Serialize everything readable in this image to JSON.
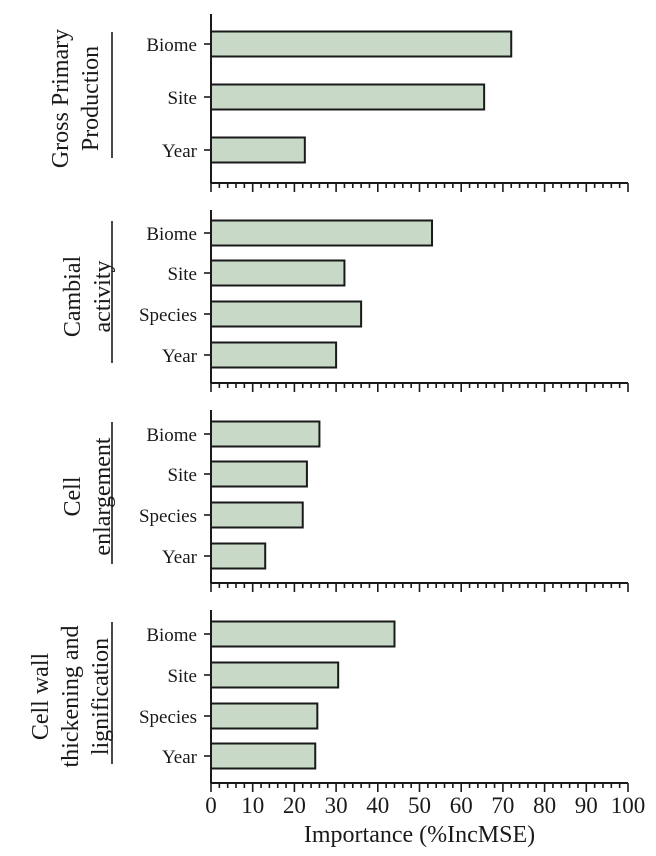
{
  "chart_data": [
    {
      "type": "bar",
      "orientation": "horizontal",
      "title": "Gross Primary Production",
      "title_lines": [
        "Gross Primary",
        "Production"
      ],
      "categories": [
        "Biome",
        "Site",
        "Year"
      ],
      "values": [
        72,
        65.5,
        22.5
      ],
      "xlim": [
        0,
        100
      ]
    },
    {
      "type": "bar",
      "orientation": "horizontal",
      "title": "Cambial activity",
      "title_lines": [
        "Cambial",
        "activity"
      ],
      "categories": [
        "Biome",
        "Site",
        "Species",
        "Year"
      ],
      "values": [
        53,
        32,
        36,
        30
      ],
      "xlim": [
        0,
        100
      ]
    },
    {
      "type": "bar",
      "orientation": "horizontal",
      "title": "Cell enlargement",
      "title_lines": [
        "Cell",
        "enlargement"
      ],
      "categories": [
        "Biome",
        "Site",
        "Species",
        "Year"
      ],
      "values": [
        26,
        23,
        22,
        13
      ],
      "xlim": [
        0,
        100
      ]
    },
    {
      "type": "bar",
      "orientation": "horizontal",
      "title": "Cell wall thickening and lignification",
      "title_lines": [
        "Cell wall",
        "thickening and",
        "lignification"
      ],
      "categories": [
        "Biome",
        "Site",
        "Species",
        "Year"
      ],
      "values": [
        44,
        30.5,
        25.5,
        25
      ],
      "xlim": [
        0,
        100
      ]
    }
  ],
  "x_axis": {
    "label": "Importance (%IncMSE)",
    "ticks": [
      "0",
      "10",
      "20",
      "30",
      "40",
      "50",
      "60",
      "70",
      "80",
      "90",
      "100"
    ]
  },
  "colors": {
    "bar_fill": "#c8d9c8",
    "bar_stroke": "#1a1a1a",
    "axis": "#1a1a1a"
  }
}
